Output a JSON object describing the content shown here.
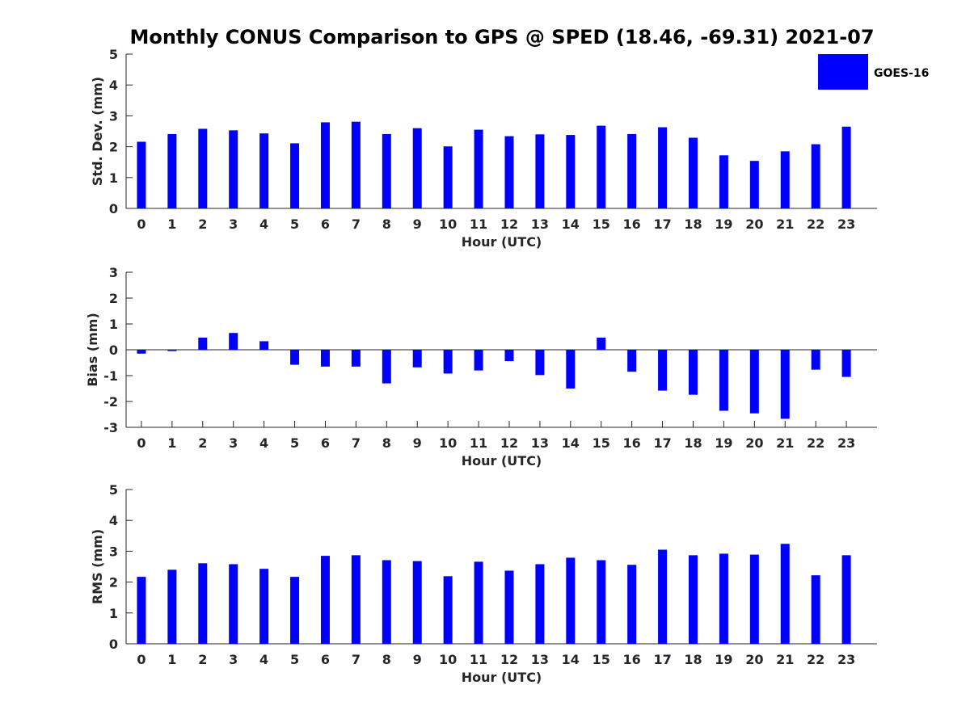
{
  "title": "Monthly CONUS Comparison to GPS @ SPED (18.46, -69.31) 2021-07",
  "legend": {
    "label": "GOES-16",
    "color": "#0000ff"
  },
  "chart_data": [
    {
      "type": "bar",
      "xlabel": "Hour (UTC)",
      "ylabel": "Std. Dev. (mm)",
      "ylim": [
        0,
        5
      ],
      "yticks": [
        0,
        1,
        2,
        3,
        4,
        5
      ],
      "categories": [
        "0",
        "1",
        "2",
        "3",
        "4",
        "5",
        "6",
        "7",
        "8",
        "9",
        "10",
        "11",
        "12",
        "13",
        "14",
        "15",
        "16",
        "17",
        "18",
        "19",
        "20",
        "21",
        "22",
        "23"
      ],
      "series": [
        {
          "name": "GOES-16",
          "color": "#0000ff",
          "values": [
            2.16,
            2.41,
            2.58,
            2.53,
            2.43,
            2.11,
            2.79,
            2.81,
            2.41,
            2.6,
            2.01,
            2.55,
            2.34,
            2.4,
            2.38,
            2.68,
            2.41,
            2.63,
            2.29,
            1.72,
            1.54,
            1.85,
            2.08,
            2.65
          ]
        }
      ]
    },
    {
      "type": "bar",
      "xlabel": "Hour (UTC)",
      "ylabel": "Bias (mm)",
      "ylim": [
        -3,
        3
      ],
      "yticks": [
        -3,
        -2,
        -1,
        0,
        1,
        2,
        3
      ],
      "categories": [
        "0",
        "1",
        "2",
        "3",
        "4",
        "5",
        "6",
        "7",
        "8",
        "9",
        "10",
        "11",
        "12",
        "13",
        "14",
        "15",
        "16",
        "17",
        "18",
        "19",
        "20",
        "21",
        "22",
        "23"
      ],
      "series": [
        {
          "name": "GOES-16",
          "color": "#0000ff",
          "values": [
            -0.15,
            -0.05,
            0.47,
            0.65,
            0.33,
            -0.58,
            -0.65,
            -0.65,
            -1.3,
            -0.68,
            -0.92,
            -0.8,
            -0.44,
            -0.98,
            -1.5,
            0.47,
            -0.85,
            -1.58,
            -1.74,
            -2.36,
            -2.46,
            -2.67,
            -0.77,
            -1.05
          ]
        }
      ]
    },
    {
      "type": "bar",
      "xlabel": "Hour (UTC)",
      "ylabel": "RMS (mm)",
      "ylim": [
        0,
        5
      ],
      "yticks": [
        0,
        1,
        2,
        3,
        4,
        5
      ],
      "categories": [
        "0",
        "1",
        "2",
        "3",
        "4",
        "5",
        "6",
        "7",
        "8",
        "9",
        "10",
        "11",
        "12",
        "13",
        "14",
        "15",
        "16",
        "17",
        "18",
        "19",
        "20",
        "21",
        "22",
        "23"
      ],
      "series": [
        {
          "name": "GOES-16",
          "color": "#0000ff",
          "values": [
            2.17,
            2.4,
            2.61,
            2.58,
            2.43,
            2.17,
            2.85,
            2.87,
            2.71,
            2.68,
            2.19,
            2.66,
            2.37,
            2.58,
            2.79,
            2.71,
            2.56,
            3.05,
            2.87,
            2.92,
            2.89,
            3.24,
            2.22,
            2.87
          ]
        }
      ]
    }
  ]
}
